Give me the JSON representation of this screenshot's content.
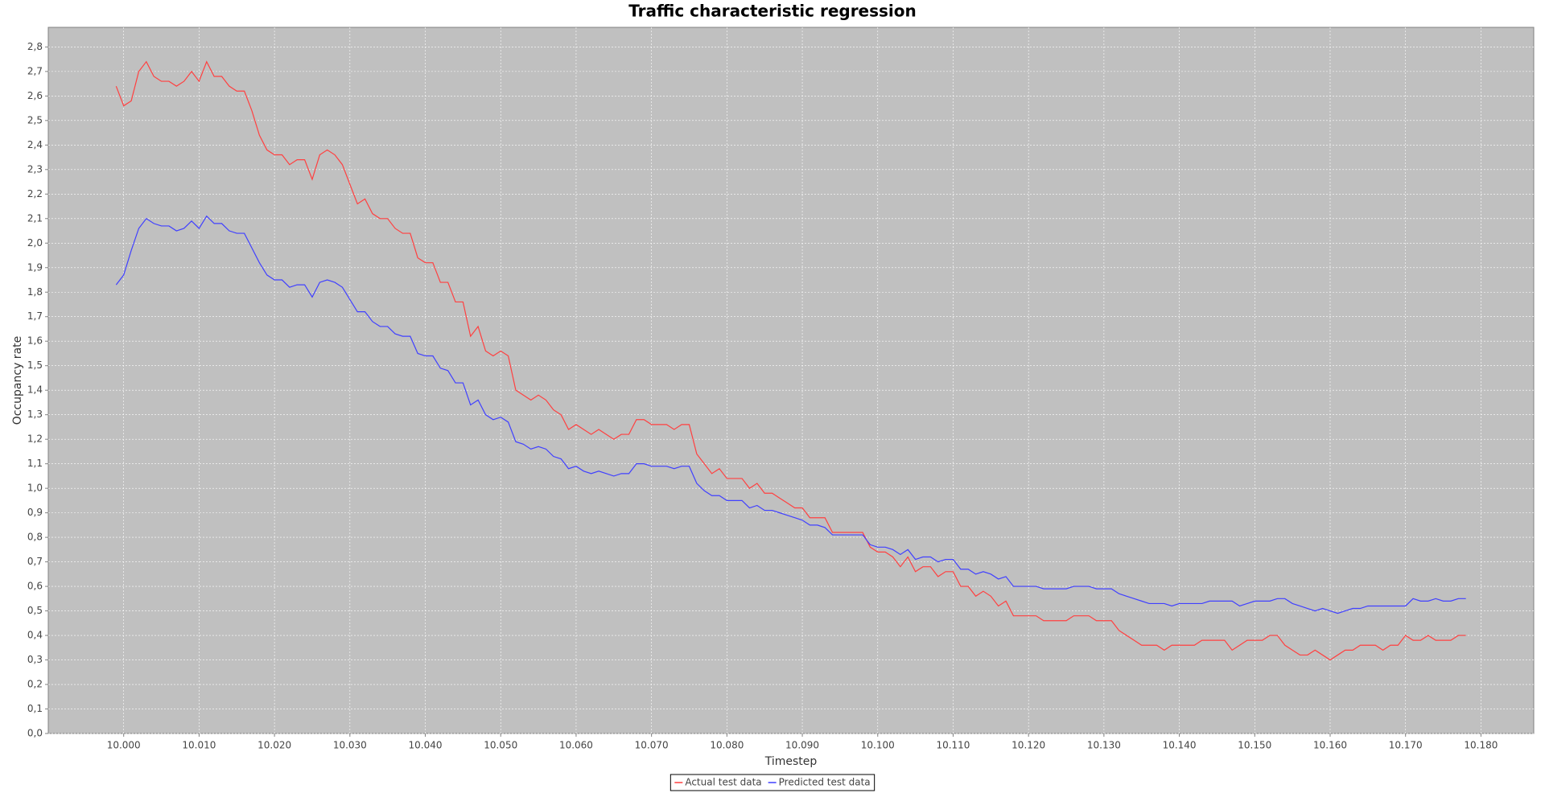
{
  "chart_data": {
    "type": "line",
    "title": "Traffic characteristic regression",
    "x_label": "Timestep",
    "y_label": "Occupancy rate",
    "x": [
      9999,
      10000,
      10001,
      10002,
      10003,
      10004,
      10005,
      10006,
      10007,
      10008,
      10009,
      10010,
      10011,
      10012,
      10013,
      10014,
      10015,
      10016,
      10017,
      10018,
      10019,
      10020,
      10021,
      10022,
      10023,
      10024,
      10025,
      10026,
      10027,
      10028,
      10029,
      10030,
      10031,
      10032,
      10033,
      10034,
      10035,
      10036,
      10037,
      10038,
      10039,
      10040,
      10041,
      10042,
      10043,
      10044,
      10045,
      10046,
      10047,
      10048,
      10049,
      10050,
      10051,
      10052,
      10053,
      10054,
      10055,
      10056,
      10057,
      10058,
      10059,
      10060,
      10061,
      10062,
      10063,
      10064,
      10065,
      10066,
      10067,
      10068,
      10069,
      10070,
      10071,
      10072,
      10073,
      10074,
      10075,
      10076,
      10077,
      10078,
      10079,
      10080,
      10081,
      10082,
      10083,
      10084,
      10085,
      10086,
      10087,
      10088,
      10089,
      10090,
      10091,
      10092,
      10093,
      10094,
      10095,
      10096,
      10097,
      10098,
      10099,
      10100,
      10101,
      10102,
      10103,
      10104,
      10105,
      10106,
      10107,
      10108,
      10109,
      10110,
      10111,
      10112,
      10113,
      10114,
      10115,
      10116,
      10117,
      10118,
      10119,
      10120,
      10121,
      10122,
      10123,
      10124,
      10125,
      10126,
      10127,
      10128,
      10129,
      10130,
      10131,
      10132,
      10133,
      10134,
      10135,
      10136,
      10137,
      10138,
      10139,
      10140,
      10141,
      10142,
      10143,
      10144,
      10145,
      10146,
      10147,
      10148,
      10149,
      10150,
      10151,
      10152,
      10153,
      10154,
      10155,
      10156,
      10157,
      10158,
      10159,
      10160,
      10161,
      10162,
      10163,
      10164,
      10165,
      10166,
      10167,
      10168,
      10169,
      10170,
      10171,
      10172,
      10173,
      10174,
      10175,
      10176,
      10177,
      10178
    ],
    "series": [
      {
        "name": "Actual test data",
        "color": "#ff4040",
        "values": [
          2.64,
          2.56,
          2.58,
          2.7,
          2.74,
          2.68,
          2.66,
          2.66,
          2.64,
          2.66,
          2.7,
          2.66,
          2.74,
          2.68,
          2.68,
          2.64,
          2.62,
          2.62,
          2.54,
          2.44,
          2.38,
          2.36,
          2.36,
          2.32,
          2.34,
          2.34,
          2.26,
          2.36,
          2.38,
          2.36,
          2.32,
          2.24,
          2.16,
          2.18,
          2.12,
          2.1,
          2.1,
          2.06,
          2.04,
          2.04,
          1.94,
          1.92,
          1.92,
          1.84,
          1.84,
          1.76,
          1.76,
          1.62,
          1.66,
          1.56,
          1.54,
          1.56,
          1.54,
          1.4,
          1.38,
          1.36,
          1.38,
          1.36,
          1.32,
          1.3,
          1.24,
          1.26,
          1.24,
          1.22,
          1.24,
          1.22,
          1.2,
          1.22,
          1.22,
          1.28,
          1.28,
          1.26,
          1.26,
          1.26,
          1.24,
          1.26,
          1.26,
          1.14,
          1.1,
          1.06,
          1.08,
          1.04,
          1.04,
          1.04,
          1.0,
          1.02,
          0.98,
          0.98,
          0.96,
          0.94,
          0.92,
          0.92,
          0.88,
          0.88,
          0.88,
          0.82,
          0.82,
          0.82,
          0.82,
          0.82,
          0.76,
          0.74,
          0.74,
          0.72,
          0.68,
          0.72,
          0.66,
          0.68,
          0.68,
          0.64,
          0.66,
          0.66,
          0.6,
          0.6,
          0.56,
          0.58,
          0.56,
          0.52,
          0.54,
          0.48,
          0.48,
          0.48,
          0.48,
          0.46,
          0.46,
          0.46,
          0.46,
          0.48,
          0.48,
          0.48,
          0.46,
          0.46,
          0.46,
          0.42,
          0.4,
          0.38,
          0.36,
          0.36,
          0.36,
          0.34,
          0.36,
          0.36,
          0.36,
          0.36,
          0.38,
          0.38,
          0.38,
          0.38,
          0.34,
          0.36,
          0.38,
          0.38,
          0.38,
          0.4,
          0.4,
          0.36,
          0.34,
          0.32,
          0.32,
          0.34,
          0.32,
          0.3,
          0.32,
          0.34,
          0.34,
          0.36,
          0.36,
          0.36,
          0.34,
          0.36,
          0.36,
          0.4,
          0.38,
          0.38,
          0.4,
          0.38,
          0.38,
          0.38,
          0.4,
          0.4
        ]
      },
      {
        "name": "Predicted test data",
        "color": "#4040ff",
        "values": [
          1.83,
          1.87,
          1.97,
          2.06,
          2.1,
          2.08,
          2.07,
          2.07,
          2.05,
          2.06,
          2.09,
          2.06,
          2.11,
          2.08,
          2.08,
          2.05,
          2.04,
          2.04,
          1.98,
          1.92,
          1.87,
          1.85,
          1.85,
          1.82,
          1.83,
          1.83,
          1.78,
          1.84,
          1.85,
          1.84,
          1.82,
          1.77,
          1.72,
          1.72,
          1.68,
          1.66,
          1.66,
          1.63,
          1.62,
          1.62,
          1.55,
          1.54,
          1.54,
          1.49,
          1.48,
          1.43,
          1.43,
          1.34,
          1.36,
          1.3,
          1.28,
          1.29,
          1.27,
          1.19,
          1.18,
          1.16,
          1.17,
          1.16,
          1.13,
          1.12,
          1.08,
          1.09,
          1.07,
          1.06,
          1.07,
          1.06,
          1.05,
          1.06,
          1.06,
          1.1,
          1.1,
          1.09,
          1.09,
          1.09,
          1.08,
          1.09,
          1.09,
          1.02,
          0.99,
          0.97,
          0.97,
          0.95,
          0.95,
          0.95,
          0.92,
          0.93,
          0.91,
          0.91,
          0.9,
          0.89,
          0.88,
          0.87,
          0.85,
          0.85,
          0.84,
          0.81,
          0.81,
          0.81,
          0.81,
          0.81,
          0.77,
          0.76,
          0.76,
          0.75,
          0.73,
          0.75,
          0.71,
          0.72,
          0.72,
          0.7,
          0.71,
          0.71,
          0.67,
          0.67,
          0.65,
          0.66,
          0.65,
          0.63,
          0.64,
          0.6,
          0.6,
          0.6,
          0.6,
          0.59,
          0.59,
          0.59,
          0.59,
          0.6,
          0.6,
          0.6,
          0.59,
          0.59,
          0.59,
          0.57,
          0.56,
          0.55,
          0.54,
          0.53,
          0.53,
          0.53,
          0.52,
          0.53,
          0.53,
          0.53,
          0.53,
          0.54,
          0.54,
          0.54,
          0.54,
          0.52,
          0.53,
          0.54,
          0.54,
          0.54,
          0.55,
          0.55,
          0.53,
          0.52,
          0.51,
          0.5,
          0.51,
          0.5,
          0.49,
          0.5,
          0.51,
          0.51,
          0.52,
          0.52,
          0.52,
          0.52,
          0.52,
          0.52,
          0.55,
          0.54,
          0.54,
          0.55,
          0.54,
          0.54,
          0.55,
          0.55
        ]
      }
    ],
    "xlim": [
      9990,
      10187
    ],
    "ylim": [
      0,
      2.88
    ],
    "xticks": [
      {
        "value": 10000,
        "label": "10.000"
      },
      {
        "value": 10010,
        "label": "10.010"
      },
      {
        "value": 10020,
        "label": "10.020"
      },
      {
        "value": 10030,
        "label": "10.030"
      },
      {
        "value": 10040,
        "label": "10.040"
      },
      {
        "value": 10050,
        "label": "10.050"
      },
      {
        "value": 10060,
        "label": "10.060"
      },
      {
        "value": 10070,
        "label": "10.070"
      },
      {
        "value": 10080,
        "label": "10.080"
      },
      {
        "value": 10090,
        "label": "10.090"
      },
      {
        "value": 10100,
        "label": "10.100"
      },
      {
        "value": 10110,
        "label": "10.110"
      },
      {
        "value": 10120,
        "label": "10.120"
      },
      {
        "value": 10130,
        "label": "10.130"
      },
      {
        "value": 10140,
        "label": "10.140"
      },
      {
        "value": 10150,
        "label": "10.150"
      },
      {
        "value": 10160,
        "label": "10.160"
      },
      {
        "value": 10170,
        "label": "10.170"
      },
      {
        "value": 10180,
        "label": "10.180"
      }
    ],
    "yticks": [
      {
        "value": 0,
        "label": "0,0"
      },
      {
        "value": 0.1,
        "label": "0,1"
      },
      {
        "value": 0.2,
        "label": "0,2"
      },
      {
        "value": 0.3,
        "label": "0,3"
      },
      {
        "value": 0.4,
        "label": "0,4"
      },
      {
        "value": 0.5,
        "label": "0,5"
      },
      {
        "value": 0.6,
        "label": "0,6"
      },
      {
        "value": 0.7,
        "label": "0,7"
      },
      {
        "value": 0.8,
        "label": "0,8"
      },
      {
        "value": 0.9,
        "label": "0,9"
      },
      {
        "value": 1.0,
        "label": "1,0"
      },
      {
        "value": 1.1,
        "label": "1,1"
      },
      {
        "value": 1.2,
        "label": "1,2"
      },
      {
        "value": 1.3,
        "label": "1,3"
      },
      {
        "value": 1.4,
        "label": "1,4"
      },
      {
        "value": 1.5,
        "label": "1,5"
      },
      {
        "value": 1.6,
        "label": "1,6"
      },
      {
        "value": 1.7,
        "label": "1,7"
      },
      {
        "value": 1.8,
        "label": "1,8"
      },
      {
        "value": 1.9,
        "label": "1,9"
      },
      {
        "value": 2.0,
        "label": "2,0"
      },
      {
        "value": 2.1,
        "label": "2,1"
      },
      {
        "value": 2.2,
        "label": "2,2"
      },
      {
        "value": 2.3,
        "label": "2,3"
      },
      {
        "value": 2.4,
        "label": "2,4"
      },
      {
        "value": 2.5,
        "label": "2,5"
      },
      {
        "value": 2.6,
        "label": "2,6"
      },
      {
        "value": 2.7,
        "label": "2,7"
      },
      {
        "value": 2.8,
        "label": "2,8"
      }
    ],
    "grid": true,
    "plot_background": "#c0c0c0",
    "legend": "bottom"
  }
}
